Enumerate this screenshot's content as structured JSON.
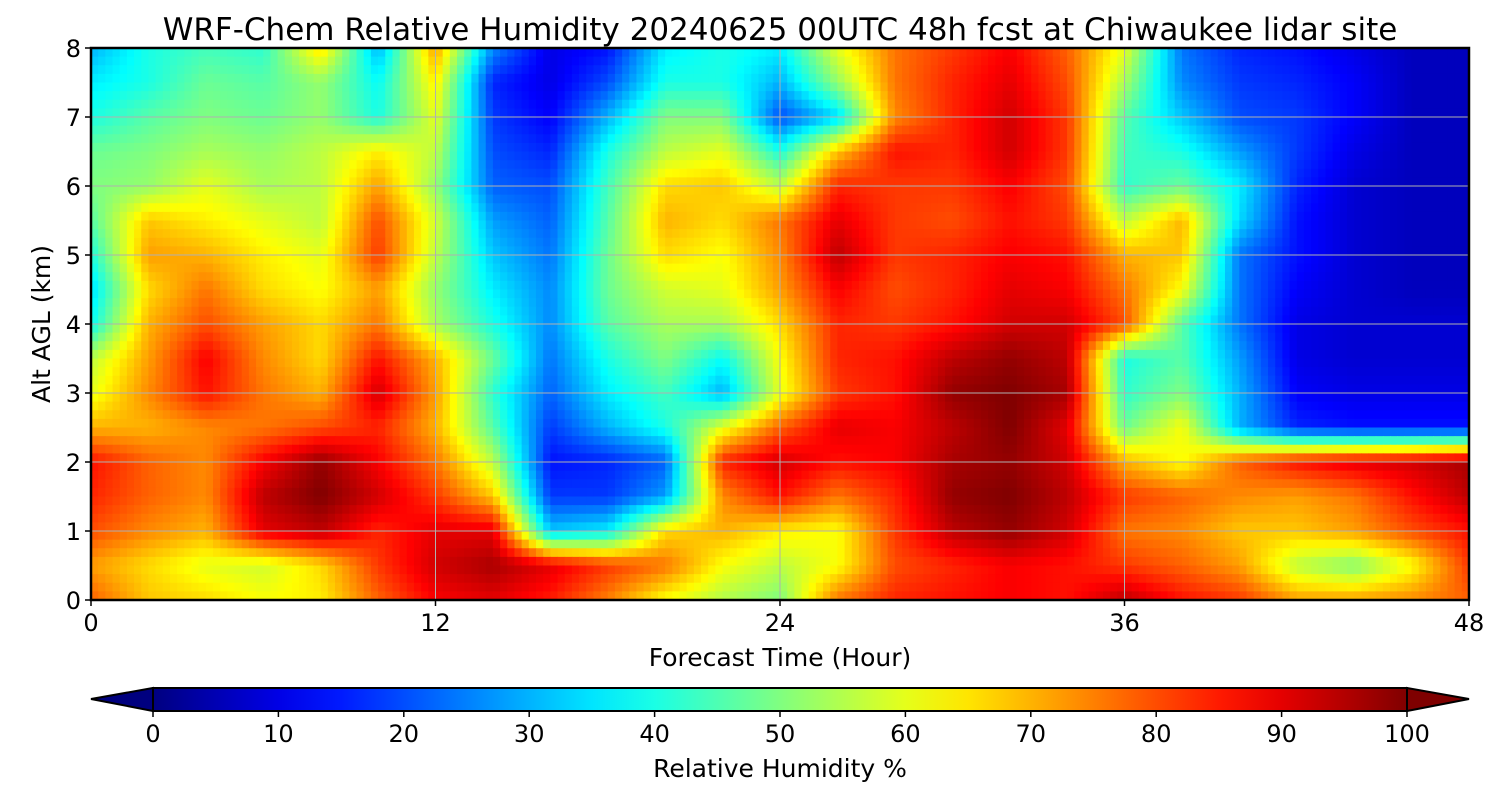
{
  "chart_data": {
    "type": "heatmap",
    "subtype": "filled-contour",
    "title": "WRF-Chem Relative Humidity 20240625 00UTC 48h fcst at Chiwaukee lidar site",
    "xlabel": "Forecast Time (Hour)",
    "ylabel": "Alt AGL (km)",
    "xlim": [
      0,
      48
    ],
    "ylim": [
      0,
      8
    ],
    "xticks": [
      "0",
      "12",
      "24",
      "36",
      "48"
    ],
    "yticks": [
      "0",
      "1",
      "2",
      "3",
      "4",
      "5",
      "6",
      "7",
      "8"
    ],
    "grid": true,
    "colormap": "jet",
    "x": [
      0,
      2,
      4,
      6,
      8,
      10,
      12,
      14,
      16,
      18,
      20,
      22,
      24,
      26,
      28,
      30,
      32,
      34,
      36,
      38,
      40,
      42,
      44,
      46,
      48
    ],
    "y": [
      0,
      0.5,
      1,
      1.5,
      2,
      2.5,
      3,
      3.5,
      4,
      4.5,
      5,
      5.5,
      6,
      6.5,
      7,
      7.5,
      8
    ],
    "z": [
      [
        78,
        68,
        66,
        62,
        64,
        78,
        88,
        90,
        85,
        75,
        62,
        55,
        50,
        76,
        84,
        86,
        88,
        86,
        94,
        86,
        82,
        72,
        72,
        74,
        78
      ],
      [
        72,
        66,
        60,
        58,
        66,
        82,
        92,
        96,
        90,
        82,
        76,
        62,
        56,
        62,
        80,
        84,
        88,
        86,
        82,
        78,
        72,
        56,
        50,
        62,
        82
      ],
      [
        80,
        74,
        70,
        90,
        94,
        84,
        90,
        90,
        32,
        36,
        66,
        70,
        64,
        62,
        82,
        94,
        98,
        92,
        76,
        74,
        68,
        68,
        72,
        80,
        86
      ],
      [
        84,
        78,
        74,
        94,
        100,
        92,
        82,
        68,
        18,
        18,
        28,
        74,
        86,
        76,
        84,
        98,
        100,
        94,
        82,
        78,
        74,
        72,
        76,
        86,
        94
      ],
      [
        86,
        78,
        74,
        88,
        98,
        88,
        76,
        56,
        14,
        16,
        22,
        84,
        92,
        86,
        88,
        96,
        98,
        92,
        70,
        62,
        78,
        86,
        90,
        92,
        96
      ],
      [
        70,
        70,
        74,
        76,
        80,
        84,
        70,
        46,
        18,
        30,
        40,
        60,
        78,
        90,
        88,
        94,
        100,
        90,
        48,
        62,
        30,
        16,
        14,
        14,
        14
      ],
      [
        60,
        74,
        86,
        76,
        70,
        92,
        72,
        42,
        22,
        36,
        44,
        30,
        60,
        82,
        86,
        98,
        100,
        96,
        42,
        50,
        30,
        12,
        10,
        10,
        10
      ],
      [
        56,
        72,
        88,
        74,
        66,
        86,
        70,
        48,
        24,
        40,
        50,
        38,
        62,
        84,
        86,
        94,
        98,
        94,
        40,
        46,
        28,
        10,
        8,
        8,
        8
      ],
      [
        38,
        70,
        80,
        72,
        66,
        76,
        54,
        40,
        26,
        46,
        54,
        54,
        66,
        84,
        82,
        86,
        92,
        92,
        80,
        46,
        24,
        10,
        8,
        8,
        8
      ],
      [
        34,
        66,
        76,
        66,
        62,
        72,
        52,
        36,
        26,
        48,
        58,
        60,
        72,
        88,
        80,
        84,
        90,
        88,
        76,
        62,
        24,
        12,
        8,
        6,
        6
      ],
      [
        40,
        72,
        70,
        64,
        60,
        82,
        56,
        32,
        24,
        48,
        66,
        62,
        74,
        94,
        82,
        84,
        88,
        86,
        70,
        68,
        24,
        14,
        8,
        6,
        6
      ],
      [
        46,
        68,
        64,
        60,
        56,
        80,
        58,
        28,
        22,
        46,
        70,
        66,
        76,
        90,
        82,
        80,
        86,
        82,
        56,
        70,
        34,
        14,
        8,
        6,
        6
      ],
      [
        50,
        52,
        60,
        54,
        56,
        72,
        52,
        22,
        20,
        44,
        66,
        68,
        56,
        84,
        82,
        82,
        88,
        80,
        42,
        48,
        36,
        16,
        8,
        6,
        6
      ],
      [
        48,
        50,
        54,
        52,
        56,
        64,
        56,
        20,
        16,
        40,
        56,
        60,
        40,
        68,
        86,
        84,
        92,
        82,
        44,
        40,
        28,
        18,
        10,
        6,
        6
      ],
      [
        40,
        46,
        50,
        48,
        52,
        40,
        60,
        18,
        12,
        30,
        50,
        50,
        20,
        34,
        74,
        84,
        92,
        82,
        46,
        32,
        20,
        18,
        12,
        6,
        6
      ],
      [
        36,
        40,
        48,
        46,
        52,
        38,
        64,
        16,
        10,
        20,
        40,
        40,
        30,
        52,
        76,
        84,
        90,
        80,
        54,
        26,
        18,
        16,
        12,
        6,
        6
      ],
      [
        30,
        40,
        44,
        42,
        66,
        30,
        72,
        26,
        10,
        14,
        36,
        40,
        36,
        60,
        76,
        82,
        88,
        78,
        60,
        24,
        16,
        14,
        10,
        6,
        6
      ]
    ],
    "colorbar": {
      "label": "Relative Humidity %",
      "min": 0,
      "max": 100,
      "ticks": [
        "0",
        "10",
        "20",
        "30",
        "40",
        "50",
        "60",
        "70",
        "80",
        "90",
        "100"
      ],
      "extend": "both"
    }
  }
}
